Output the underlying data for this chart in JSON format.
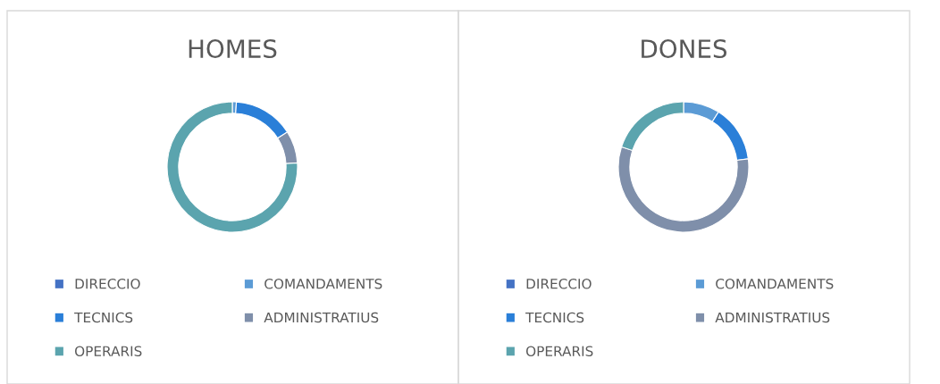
{
  "chart_data": [
    {
      "type": "donut",
      "title": "HOMES",
      "categories": [
        "DIRECCIO",
        "COMANDAMENTS",
        "TECNICS",
        "ADMINISTRATIUS",
        "OPERARIS"
      ],
      "values": [
        0,
        1,
        15,
        8,
        76
      ],
      "colors": [
        "#4472c4",
        "#5b9bd5",
        "#2a7fd8",
        "#7f8faa",
        "#5ba4ae"
      ],
      "legend": "bottom"
    },
    {
      "type": "donut",
      "title": "DONES",
      "categories": [
        "DIRECCIO",
        "COMANDAMENTS",
        "TECNICS",
        "ADMINISTRATIUS",
        "OPERARIS"
      ],
      "values": [
        0,
        9,
        14,
        57,
        20
      ],
      "colors": [
        "#4472c4",
        "#5b9bd5",
        "#2a7fd8",
        "#7f8faa",
        "#5ba4ae"
      ],
      "legend": "bottom"
    }
  ]
}
